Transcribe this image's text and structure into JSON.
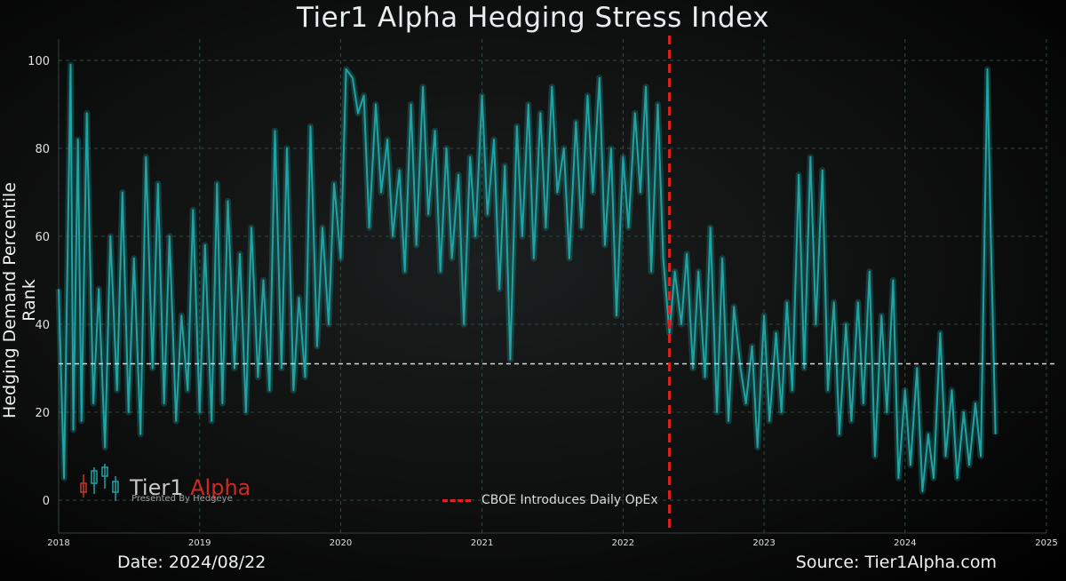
{
  "chart_data": {
    "type": "line",
    "title": "Tier1 Alpha Hedging Stress Index",
    "ylabel": "Hedging Demand Percentile Rank",
    "xlabel": "",
    "ylim": [
      0,
      100
    ],
    "xlim": [
      "2018-01-01",
      "2025-01-01"
    ],
    "yticks": [
      0,
      20,
      40,
      60,
      80,
      100
    ],
    "xticks": [
      "2018",
      "2019",
      "2020",
      "2021",
      "2022",
      "2023",
      "2024",
      "2025"
    ],
    "grid": true,
    "line_color": "#1fa3a3",
    "reference_line": {
      "value": 31,
      "style": "dashed",
      "color": "#d8d8d8"
    },
    "event_line": {
      "date": "2022-05-01",
      "label": "CBOE Introduces Daily OpEx",
      "color": "#e02020"
    },
    "legend_placement": "bottom-center",
    "series": [
      {
        "name": "",
        "x": [
          "2018-01-01",
          "2018-01-15",
          "2018-02-01",
          "2018-02-08",
          "2018-02-20",
          "2018-03-01",
          "2018-03-15",
          "2018-04-01",
          "2018-04-15",
          "2018-05-01",
          "2018-05-15",
          "2018-06-01",
          "2018-06-15",
          "2018-07-01",
          "2018-07-15",
          "2018-08-01",
          "2018-08-15",
          "2018-09-01",
          "2018-09-15",
          "2018-10-01",
          "2018-10-15",
          "2018-11-01",
          "2018-11-15",
          "2018-12-01",
          "2018-12-15",
          "2019-01-01",
          "2019-01-15",
          "2019-02-01",
          "2019-02-15",
          "2019-03-01",
          "2019-03-15",
          "2019-04-01",
          "2019-04-15",
          "2019-05-01",
          "2019-05-15",
          "2019-06-01",
          "2019-06-15",
          "2019-07-01",
          "2019-07-15",
          "2019-08-01",
          "2019-08-15",
          "2019-09-01",
          "2019-09-15",
          "2019-10-01",
          "2019-10-15",
          "2019-11-01",
          "2019-11-15",
          "2019-12-01",
          "2019-12-15",
          "2020-01-01",
          "2020-01-15",
          "2020-02-01",
          "2020-02-15",
          "2020-03-01",
          "2020-03-15",
          "2020-04-01",
          "2020-04-15",
          "2020-05-01",
          "2020-05-15",
          "2020-06-01",
          "2020-06-15",
          "2020-07-01",
          "2020-07-15",
          "2020-08-01",
          "2020-08-15",
          "2020-09-01",
          "2020-09-15",
          "2020-10-01",
          "2020-10-15",
          "2020-11-01",
          "2020-11-15",
          "2020-12-01",
          "2020-12-15",
          "2021-01-01",
          "2021-01-15",
          "2021-02-01",
          "2021-02-15",
          "2021-03-01",
          "2021-03-15",
          "2021-04-01",
          "2021-04-15",
          "2021-05-01",
          "2021-05-15",
          "2021-06-01",
          "2021-06-15",
          "2021-07-01",
          "2021-07-15",
          "2021-08-01",
          "2021-08-15",
          "2021-09-01",
          "2021-09-15",
          "2021-10-01",
          "2021-10-15",
          "2021-11-01",
          "2021-11-15",
          "2021-12-01",
          "2021-12-15",
          "2022-01-01",
          "2022-01-15",
          "2022-02-01",
          "2022-02-15",
          "2022-03-01",
          "2022-03-15",
          "2022-04-01",
          "2022-04-15",
          "2022-05-01",
          "2022-05-15",
          "2022-06-01",
          "2022-06-15",
          "2022-07-01",
          "2022-07-15",
          "2022-08-01",
          "2022-08-15",
          "2022-09-01",
          "2022-09-15",
          "2022-10-01",
          "2022-10-15",
          "2022-11-01",
          "2022-11-15",
          "2022-12-01",
          "2022-12-15",
          "2023-01-01",
          "2023-01-15",
          "2023-02-01",
          "2023-02-15",
          "2023-03-01",
          "2023-03-15",
          "2023-04-01",
          "2023-04-15",
          "2023-05-01",
          "2023-05-15",
          "2023-06-01",
          "2023-06-15",
          "2023-07-01",
          "2023-07-15",
          "2023-08-01",
          "2023-08-15",
          "2023-09-01",
          "2023-09-15",
          "2023-10-01",
          "2023-10-15",
          "2023-11-01",
          "2023-11-15",
          "2023-12-01",
          "2023-12-15",
          "2024-01-01",
          "2024-01-15",
          "2024-02-01",
          "2024-02-15",
          "2024-03-01",
          "2024-03-15",
          "2024-04-01",
          "2024-04-15",
          "2024-05-01",
          "2024-05-15",
          "2024-06-01",
          "2024-06-15",
          "2024-07-01",
          "2024-07-15",
          "2024-08-01",
          "2024-08-10",
          "2024-08-22"
        ],
        "values": [
          48,
          5,
          99,
          16,
          82,
          18,
          88,
          22,
          48,
          12,
          60,
          25,
          70,
          20,
          55,
          15,
          78,
          30,
          72,
          22,
          60,
          18,
          42,
          25,
          66,
          20,
          58,
          18,
          72,
          22,
          68,
          30,
          56,
          20,
          62,
          28,
          50,
          25,
          84,
          30,
          80,
          25,
          46,
          28,
          85,
          35,
          62,
          40,
          72,
          55,
          98,
          96,
          88,
          92,
          62,
          90,
          70,
          82,
          60,
          75,
          52,
          90,
          58,
          94,
          65,
          84,
          52,
          80,
          55,
          74,
          40,
          78,
          60,
          92,
          65,
          82,
          48,
          76,
          32,
          85,
          60,
          90,
          55,
          88,
          62,
          94,
          70,
          80,
          55,
          86,
          62,
          92,
          70,
          96,
          58,
          80,
          42,
          78,
          62,
          88,
          70,
          94,
          52,
          90,
          55,
          38,
          52,
          40,
          56,
          30,
          52,
          28,
          62,
          20,
          55,
          18,
          44,
          30,
          22,
          35,
          12,
          42,
          18,
          38,
          20,
          45,
          25,
          74,
          30,
          78,
          40,
          75,
          25,
          45,
          15,
          40,
          18,
          45,
          22,
          52,
          10,
          42,
          20,
          50,
          5,
          25,
          8,
          30,
          2,
          15,
          5,
          38,
          10,
          25,
          5,
          20,
          8,
          22,
          10,
          98,
          60,
          15
        ]
      }
    ]
  },
  "footer": {
    "date_label": "Date: 2024/08/22",
    "source_label": "Source: Tier1Alpha.com"
  },
  "logo": {
    "name_part1": "Tier1",
    "name_part2": " Alpha",
    "tagline": "Presented By Hedgeye",
    "icon": "candlestick-icon"
  }
}
